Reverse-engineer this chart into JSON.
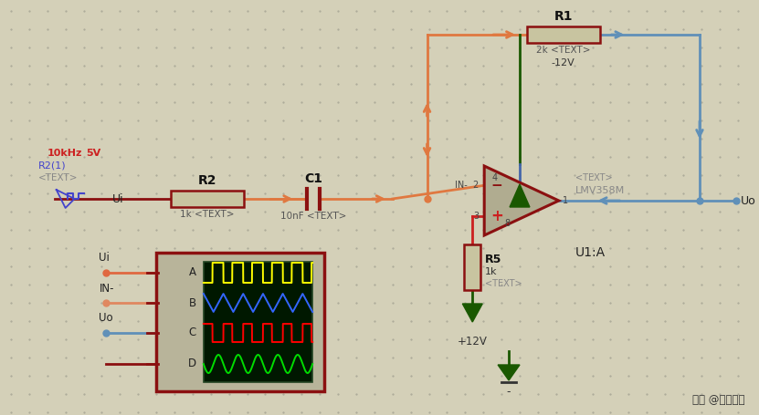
{
  "bg_color": "#d4d0b8",
  "dot_color": "#aaa898",
  "wire_orange": "#e07840",
  "wire_blue": "#6090b8",
  "wire_dark": "#8b1010",
  "wire_green": "#1a5800",
  "resistor_fill": "#c8c4a0",
  "op_amp_fill": "#b0ac90",
  "scope_bg": "#001800",
  "scope_border": "#8b1010",
  "watermark": "头条 @电厕药丸",
  "R1_label": "R1",
  "R1_val": "2k <TEXT>",
  "R2_label": "R2",
  "R2_val": "1k <TEXT>",
  "C1_label": "C1",
  "C1_val": "10nF <TEXT>",
  "R5_label": "R5",
  "R5_val": "1k",
  "R5_text": "<TEXT>",
  "U1_label": "U1:A",
  "text_model": "<TEXT>",
  "model_name": "LMV358M",
  "neg12v": "-12V",
  "pos12v": "+12V",
  "sig_freq": "10kHz",
  "sig_amp": "5V",
  "sig_source": "R2(1)",
  "sig_text": "<TEXT>",
  "Ui_label": "Ui",
  "IN_label": "IN-",
  "Uo_label": "Uo",
  "pin_IN_minus": "IN-  2",
  "pin_plus": "3",
  "pin_out": "1",
  "pin_vcc": "4",
  "pin_vee": "8",
  "gnd_minus": "-"
}
